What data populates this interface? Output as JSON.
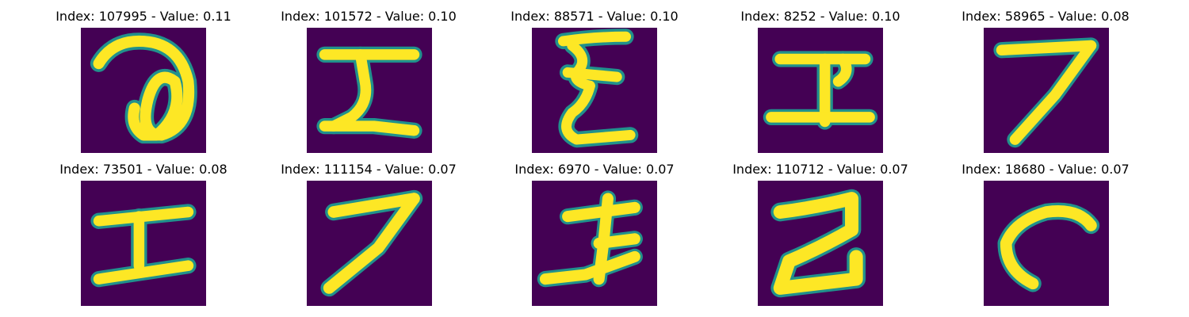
{
  "figure": {
    "background": "#ffffff",
    "colormap": {
      "low": "#440154",
      "mid": "#21918c",
      "high": "#fde725"
    },
    "panels": [
      {
        "title": "Index: 107995 - Value: 0.11",
        "glyph": "loop-digit-like"
      },
      {
        "title": "Index: 101572 - Value: 0.10",
        "glyph": "z-i-shape"
      },
      {
        "title": "Index: 88571 - Value: 0.10",
        "glyph": "sigma-e-shape"
      },
      {
        "title": "Index: 8252 - Value: 0.10",
        "glyph": "i-with-hook"
      },
      {
        "title": "Index: 58965 - Value: 0.08",
        "glyph": "seven"
      },
      {
        "title": "Index: 73501 - Value: 0.08",
        "glyph": "i-shape"
      },
      {
        "title": "Index: 111154 - Value: 0.07",
        "glyph": "seven"
      },
      {
        "title": "Index: 6970 - Value: 0.07",
        "glyph": "crossed-i"
      },
      {
        "title": "Index: 110712 - Value: 0.07",
        "glyph": "two"
      },
      {
        "title": "Index: 18680 - Value: 0.07",
        "glyph": "hook-curve"
      }
    ]
  }
}
